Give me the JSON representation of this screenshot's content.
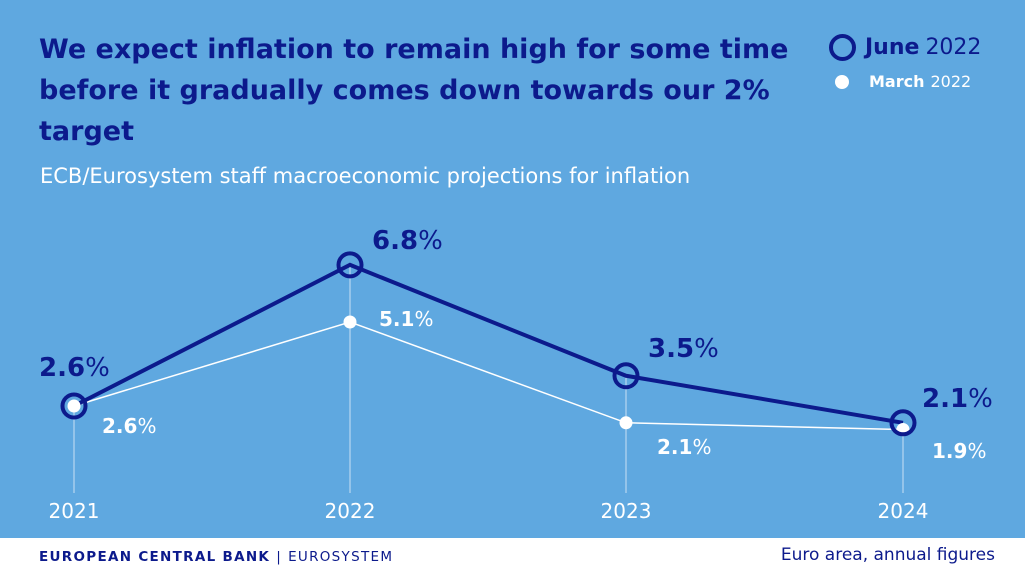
{
  "header": {
    "title": "We expect inflation to remain high for some time before it gradually comes down towards our 2% target",
    "subtitle": "ECB/Eurosystem staff macroeconomic projections for inflation"
  },
  "legend": {
    "june": {
      "bold": "June",
      "regular": "2022"
    },
    "march": {
      "bold": "March",
      "regular": "2022"
    }
  },
  "footer": {
    "org": "EUROPEAN CENTRAL BANK",
    "separator": "|",
    "system": "EUROSYSTEM",
    "note": "Euro area, annual figures"
  },
  "colors": {
    "background": "#5fa8e0",
    "june": "#0c1a8c",
    "march": "#ffffff"
  },
  "chart_data": {
    "type": "line",
    "title": "We expect inflation to remain high for some time before it gradually comes down towards our 2% target",
    "subtitle": "ECB/Eurosystem staff macroeconomic projections for inflation",
    "categories": [
      "2021",
      "2022",
      "2023",
      "2024"
    ],
    "series": [
      {
        "name": "June 2022",
        "values": [
          2.6,
          6.8,
          3.5,
          2.1
        ],
        "labels": [
          "2.6%",
          "6.8%",
          "3.5%",
          "2.1%"
        ]
      },
      {
        "name": "March 2022",
        "values": [
          2.6,
          5.1,
          2.1,
          1.9
        ],
        "labels": [
          "2.6%",
          "5.1%",
          "2.1%",
          "1.9%"
        ]
      }
    ],
    "unit": "%",
    "grid": false,
    "legend_position": "top-right"
  }
}
